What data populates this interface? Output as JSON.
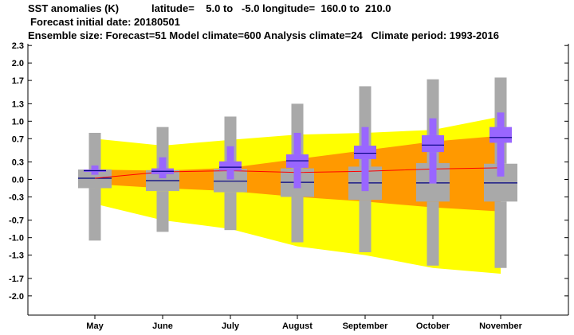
{
  "header": {
    "title": "SST anomalies (K)",
    "latitude": "latitude=    5.0 to   -5.0 longitude=  160.0 to  210.0",
    "forecast_initial_date": "Forecast initial date: 20180501",
    "ensemble_info": "Ensemble size: Forecast=51 Model climate=600 Analysis climate=24   Climate period: 1993-2016"
  },
  "colors": {
    "outer_band": "#ffff00",
    "inner_band": "#ff9900",
    "climate_box": "#a9a9a9",
    "forecast_box": "#9966ff",
    "median_line": "#000080",
    "analysis_line": "#ff0000"
  },
  "chart_data": {
    "type": "boxplot",
    "title": "SST anomalies (K)",
    "categories": [
      "May",
      "June",
      "July",
      "August",
      "September",
      "October",
      "November"
    ],
    "y_ticks": [
      "2.3",
      "2.0",
      "1.7",
      "1.3",
      "1.0",
      "0.7",
      "0.3",
      "0.0",
      "-0.3",
      "-0.7",
      "-1.0",
      "-1.3",
      "-1.7",
      "-2.0"
    ],
    "ylim": [
      -2.33,
      2.33
    ],
    "climate_outer_band": {
      "upper": [
        0.7,
        0.58,
        0.68,
        0.77,
        0.8,
        0.85,
        1.08
      ],
      "lower": [
        -0.42,
        -0.7,
        -0.85,
        -1.15,
        -1.3,
        -1.52,
        -1.62
      ]
    },
    "climate_inner_band": {
      "upper": [
        0.17,
        0.15,
        0.2,
        0.35,
        0.5,
        0.65,
        0.75
      ],
      "lower": [
        -0.08,
        -0.15,
        -0.2,
        -0.3,
        -0.38,
        -0.48,
        -0.55
      ]
    },
    "analysis_line": [
      0.02,
      0.13,
      0.15,
      0.12,
      0.14,
      0.18,
      0.2
    ],
    "model_climate": [
      {
        "min": -1.05,
        "q1": -0.15,
        "median": 0.02,
        "q3": 0.17,
        "max": 0.8
      },
      {
        "min": -0.9,
        "q1": -0.2,
        "median": -0.02,
        "q3": 0.16,
        "max": 0.9
      },
      {
        "min": -0.87,
        "q1": -0.22,
        "median": -0.03,
        "q3": 0.18,
        "max": 1.08
      },
      {
        "min": -1.08,
        "q1": -0.3,
        "median": -0.05,
        "q3": 0.19,
        "max": 1.3
      },
      {
        "min": -1.25,
        "q1": -0.35,
        "median": -0.06,
        "q3": 0.22,
        "max": 1.6
      },
      {
        "min": -1.48,
        "q1": -0.38,
        "median": -0.06,
        "q3": 0.28,
        "max": 1.72
      },
      {
        "min": -1.52,
        "q1": -0.38,
        "median": -0.06,
        "q3": 0.27,
        "max": 1.75
      }
    ],
    "forecast": [
      {
        "min": 0.08,
        "q1": 0.13,
        "median": 0.15,
        "q3": 0.17,
        "max": 0.24
      },
      {
        "min": 0.02,
        "q1": 0.09,
        "median": 0.14,
        "q3": 0.19,
        "max": 0.38
      },
      {
        "min": 0.0,
        "q1": 0.15,
        "median": 0.21,
        "q3": 0.31,
        "max": 0.57
      },
      {
        "min": -0.15,
        "q1": 0.2,
        "median": 0.32,
        "q3": 0.43,
        "max": 0.8
      },
      {
        "min": -0.2,
        "q1": 0.35,
        "median": 0.45,
        "q3": 0.58,
        "max": 0.9
      },
      {
        "min": -0.07,
        "q1": 0.47,
        "median": 0.59,
        "q3": 0.76,
        "max": 1.05
      },
      {
        "min": 0.05,
        "q1": 0.63,
        "median": 0.72,
        "q3": 0.9,
        "max": 1.15
      }
    ]
  }
}
